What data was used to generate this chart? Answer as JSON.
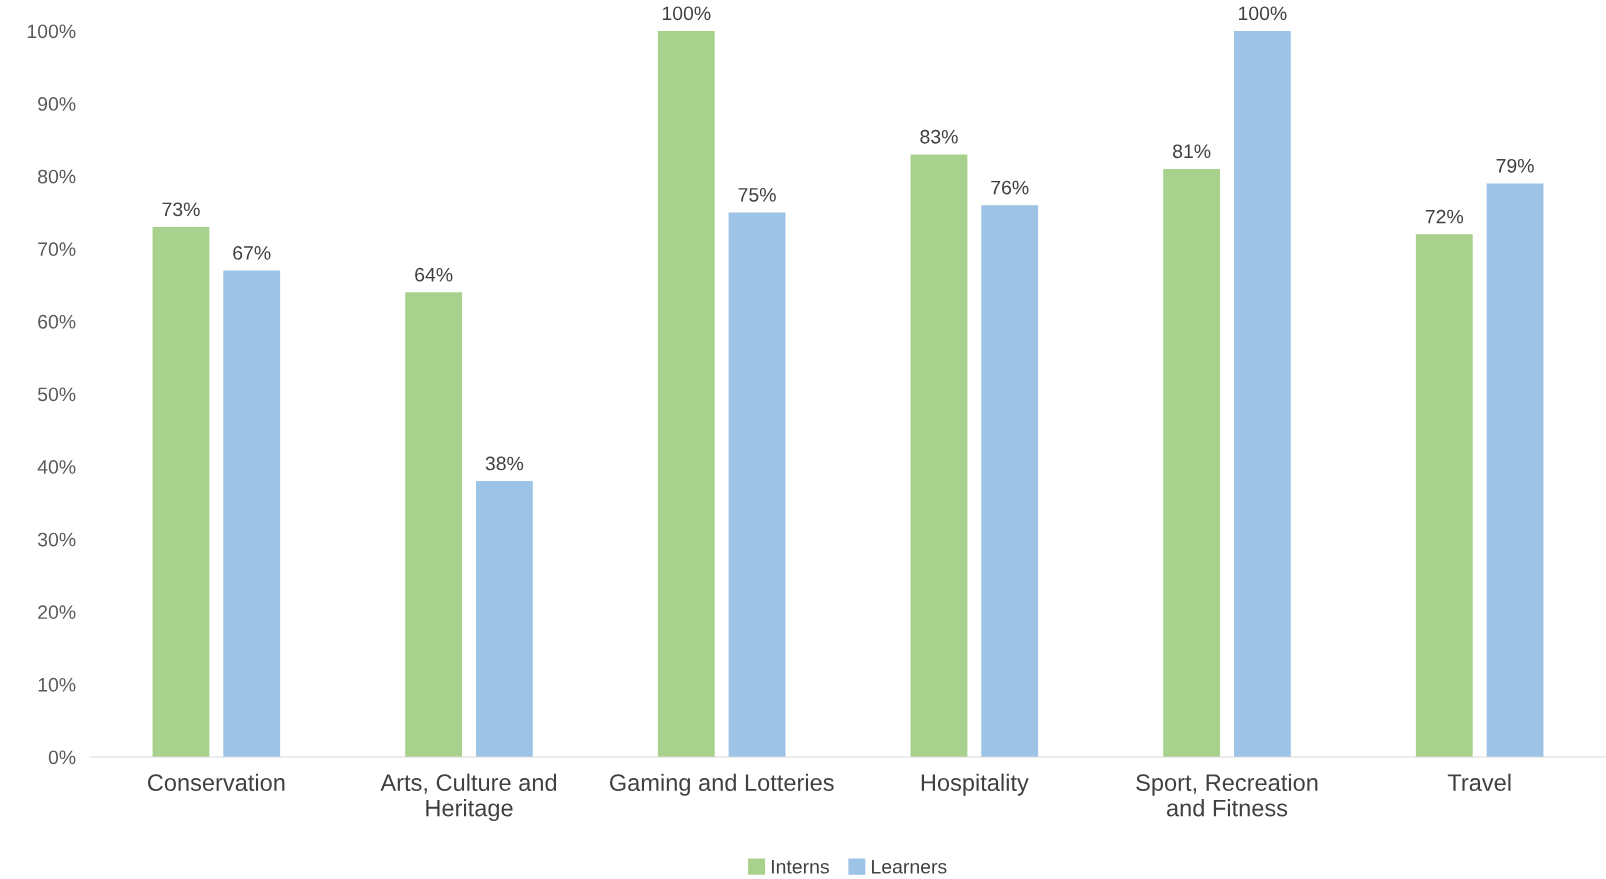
{
  "chart_data": {
    "type": "bar",
    "categories": [
      "Conservation",
      "Arts, Culture and\nHeritage",
      "Gaming and Lotteries",
      "Hospitality",
      "Sport, Recreation\nand Fitness",
      "Travel"
    ],
    "series": [
      {
        "name": "Interns",
        "color": "#a9d18e",
        "values": [
          73,
          64,
          100,
          83,
          81,
          72
        ],
        "value_labels": [
          "73%",
          "64%",
          "100%",
          "83%",
          "81%",
          "72%"
        ]
      },
      {
        "name": "Learners",
        "color": "#9dc3e6",
        "values": [
          67,
          38,
          75,
          76,
          100,
          79
        ],
        "value_labels": [
          "67%",
          "38%",
          "75%",
          "76%",
          "100%",
          "79%"
        ]
      }
    ],
    "ylim": [
      0,
      100
    ],
    "yticks": [
      {
        "value": 0,
        "label": "0%"
      },
      {
        "value": 10,
        "label": "10%"
      },
      {
        "value": 20,
        "label": "20%"
      },
      {
        "value": 30,
        "label": "30%"
      },
      {
        "value": 40,
        "label": "40%"
      },
      {
        "value": 50,
        "label": "50%"
      },
      {
        "value": 60,
        "label": "60%"
      },
      {
        "value": 70,
        "label": "70%"
      },
      {
        "value": 80,
        "label": "80%"
      },
      {
        "value": 90,
        "label": "90%"
      },
      {
        "value": 100,
        "label": "100%"
      }
    ],
    "grid": false,
    "legend": "bottom"
  }
}
